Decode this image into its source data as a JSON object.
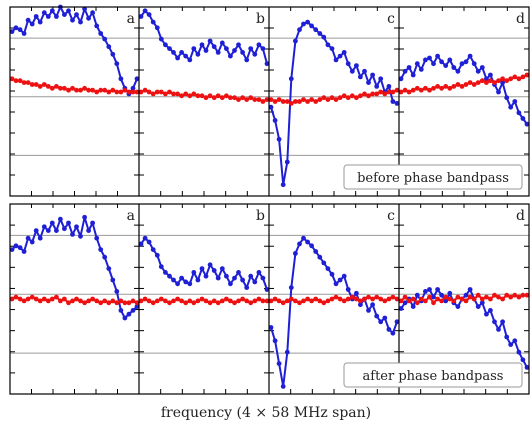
{
  "figure": {
    "xlabel": "frequency (4 × 58 MHz span)",
    "colors": {
      "blue": "#1f1fd6",
      "red": "#ee1111",
      "grid": "#9a9a9a",
      "frame": "#000000"
    }
  },
  "chart_data": [
    {
      "type": "line",
      "note": "before phase bandpass",
      "panel_labels": [
        "a",
        "b",
        "c",
        "d"
      ],
      "grid": true,
      "ylim": [
        0,
        1
      ],
      "x_points_per_panel": 32,
      "series": [
        {
          "color": "blue",
          "panels": [
            [
              0.87,
              0.89,
              0.88,
              0.86,
              0.93,
              0.91,
              0.95,
              0.92,
              0.97,
              0.95,
              0.98,
              0.95,
              1.0,
              0.96,
              0.98,
              0.93,
              0.96,
              0.92,
              0.99,
              0.94,
              0.97,
              0.9,
              0.86,
              0.83,
              0.79,
              0.75,
              0.7,
              0.62,
              0.57,
              0.54,
              0.57,
              0.62
            ],
            [
              0.95,
              0.98,
              0.96,
              0.92,
              0.89,
              0.83,
              0.8,
              0.78,
              0.76,
              0.73,
              0.76,
              0.74,
              0.72,
              0.78,
              0.75,
              0.8,
              0.77,
              0.82,
              0.79,
              0.76,
              0.81,
              0.78,
              0.74,
              0.77,
              0.8,
              0.76,
              0.72,
              0.78,
              0.75,
              0.8,
              0.78,
              0.7
            ],
            [
              0.47,
              0.4,
              0.3,
              0.06,
              0.18,
              0.62,
              0.82,
              0.88,
              0.91,
              0.92,
              0.9,
              0.88,
              0.86,
              0.84,
              0.8,
              0.78,
              0.72,
              0.74,
              0.76,
              0.7,
              0.66,
              0.69,
              0.63,
              0.66,
              0.6,
              0.64,
              0.58,
              0.62,
              0.55,
              0.58,
              0.5,
              0.49
            ],
            [
              0.62,
              0.66,
              0.68,
              0.64,
              0.7,
              0.67,
              0.72,
              0.73,
              0.7,
              0.74,
              0.71,
              0.69,
              0.72,
              0.68,
              0.66,
              0.7,
              0.71,
              0.74,
              0.7,
              0.66,
              0.68,
              0.62,
              0.64,
              0.59,
              0.55,
              0.6,
              0.52,
              0.47,
              0.5,
              0.44,
              0.41,
              0.38
            ]
          ]
        },
        {
          "color": "red",
          "panels": [
            [
              0.62,
              0.61,
              0.61,
              0.6,
              0.6,
              0.59,
              0.59,
              0.58,
              0.59,
              0.58,
              0.57,
              0.58,
              0.57,
              0.57,
              0.56,
              0.57,
              0.56,
              0.56,
              0.57,
              0.56,
              0.56,
              0.55,
              0.56,
              0.56,
              0.55,
              0.56,
              0.55,
              0.55,
              0.56,
              0.55,
              0.55,
              0.55
            ],
            [
              0.55,
              0.56,
              0.55,
              0.54,
              0.55,
              0.55,
              0.54,
              0.55,
              0.54,
              0.54,
              0.53,
              0.54,
              0.53,
              0.54,
              0.53,
              0.53,
              0.52,
              0.53,
              0.52,
              0.53,
              0.52,
              0.53,
              0.52,
              0.52,
              0.51,
              0.52,
              0.51,
              0.52,
              0.51,
              0.51,
              0.5,
              0.51
            ],
            [
              0.51,
              0.5,
              0.51,
              0.5,
              0.5,
              0.49,
              0.5,
              0.5,
              0.51,
              0.5,
              0.51,
              0.5,
              0.51,
              0.52,
              0.51,
              0.52,
              0.51,
              0.52,
              0.53,
              0.52,
              0.53,
              0.52,
              0.53,
              0.54,
              0.53,
              0.54,
              0.54,
              0.55,
              0.54,
              0.55,
              0.55,
              0.56
            ],
            [
              0.55,
              0.56,
              0.55,
              0.56,
              0.57,
              0.56,
              0.57,
              0.56,
              0.57,
              0.58,
              0.57,
              0.58,
              0.57,
              0.58,
              0.59,
              0.58,
              0.59,
              0.6,
              0.59,
              0.6,
              0.61,
              0.6,
              0.61,
              0.6,
              0.61,
              0.62,
              0.61,
              0.62,
              0.63,
              0.62,
              0.63,
              0.64
            ]
          ]
        }
      ]
    },
    {
      "type": "line",
      "note": "after phase bandpass",
      "panel_labels": [
        "a",
        "b",
        "c",
        "d"
      ],
      "grid": true,
      "ylim": [
        0,
        1
      ],
      "x_points_per_panel": 32,
      "series": [
        {
          "color": "blue",
          "panels": [
            [
              0.76,
              0.78,
              0.77,
              0.75,
              0.82,
              0.8,
              0.86,
              0.82,
              0.88,
              0.86,
              0.9,
              0.86,
              0.92,
              0.87,
              0.9,
              0.84,
              0.88,
              0.83,
              0.93,
              0.86,
              0.9,
              0.82,
              0.76,
              0.72,
              0.66,
              0.6,
              0.54,
              0.44,
              0.4,
              0.42,
              0.44,
              0.46
            ],
            [
              0.79,
              0.82,
              0.8,
              0.76,
              0.73,
              0.67,
              0.64,
              0.62,
              0.6,
              0.58,
              0.61,
              0.59,
              0.58,
              0.64,
              0.6,
              0.66,
              0.62,
              0.68,
              0.65,
              0.61,
              0.66,
              0.62,
              0.58,
              0.61,
              0.64,
              0.6,
              0.56,
              0.62,
              0.59,
              0.64,
              0.61,
              0.55
            ],
            [
              0.35,
              0.28,
              0.16,
              0.04,
              0.22,
              0.56,
              0.74,
              0.79,
              0.82,
              0.8,
              0.78,
              0.75,
              0.72,
              0.69,
              0.66,
              0.63,
              0.58,
              0.6,
              0.62,
              0.55,
              0.5,
              0.53,
              0.47,
              0.5,
              0.44,
              0.47,
              0.41,
              0.38,
              0.4,
              0.34,
              0.32,
              0.38
            ],
            [
              0.45,
              0.48,
              0.5,
              0.46,
              0.52,
              0.49,
              0.54,
              0.55,
              0.51,
              0.55,
              0.52,
              0.49,
              0.53,
              0.48,
              0.46,
              0.5,
              0.52,
              0.55,
              0.5,
              0.46,
              0.48,
              0.42,
              0.44,
              0.38,
              0.34,
              0.38,
              0.3,
              0.26,
              0.28,
              0.22,
              0.18,
              0.14
            ]
          ]
        },
        {
          "color": "red",
          "panels": [
            [
              0.5,
              0.51,
              0.5,
              0.49,
              0.5,
              0.51,
              0.5,
              0.49,
              0.5,
              0.49,
              0.5,
              0.51,
              0.49,
              0.5,
              0.48,
              0.49,
              0.5,
              0.49,
              0.48,
              0.49,
              0.5,
              0.49,
              0.48,
              0.49,
              0.48,
              0.49,
              0.48,
              0.49,
              0.48,
              0.48,
              0.49,
              0.48
            ],
            [
              0.49,
              0.5,
              0.49,
              0.48,
              0.49,
              0.5,
              0.49,
              0.48,
              0.49,
              0.5,
              0.49,
              0.48,
              0.49,
              0.48,
              0.49,
              0.5,
              0.49,
              0.48,
              0.49,
              0.48,
              0.49,
              0.5,
              0.49,
              0.48,
              0.49,
              0.5,
              0.49,
              0.48,
              0.49,
              0.5,
              0.49,
              0.49
            ],
            [
              0.49,
              0.5,
              0.49,
              0.48,
              0.49,
              0.5,
              0.49,
              0.48,
              0.49,
              0.5,
              0.49,
              0.5,
              0.49,
              0.48,
              0.49,
              0.5,
              0.51,
              0.5,
              0.49,
              0.5,
              0.51,
              0.5,
              0.49,
              0.5,
              0.51,
              0.5,
              0.51,
              0.5,
              0.49,
              0.5,
              0.51,
              0.5
            ],
            [
              0.49,
              0.51,
              0.49,
              0.5,
              0.48,
              0.5,
              0.49,
              0.51,
              0.48,
              0.5,
              0.49,
              0.51,
              0.5,
              0.49,
              0.51,
              0.5,
              0.49,
              0.51,
              0.5,
              0.52,
              0.5,
              0.51,
              0.5,
              0.52,
              0.51,
              0.5,
              0.52,
              0.51,
              0.52,
              0.51,
              0.52,
              0.52
            ]
          ]
        }
      ]
    }
  ]
}
